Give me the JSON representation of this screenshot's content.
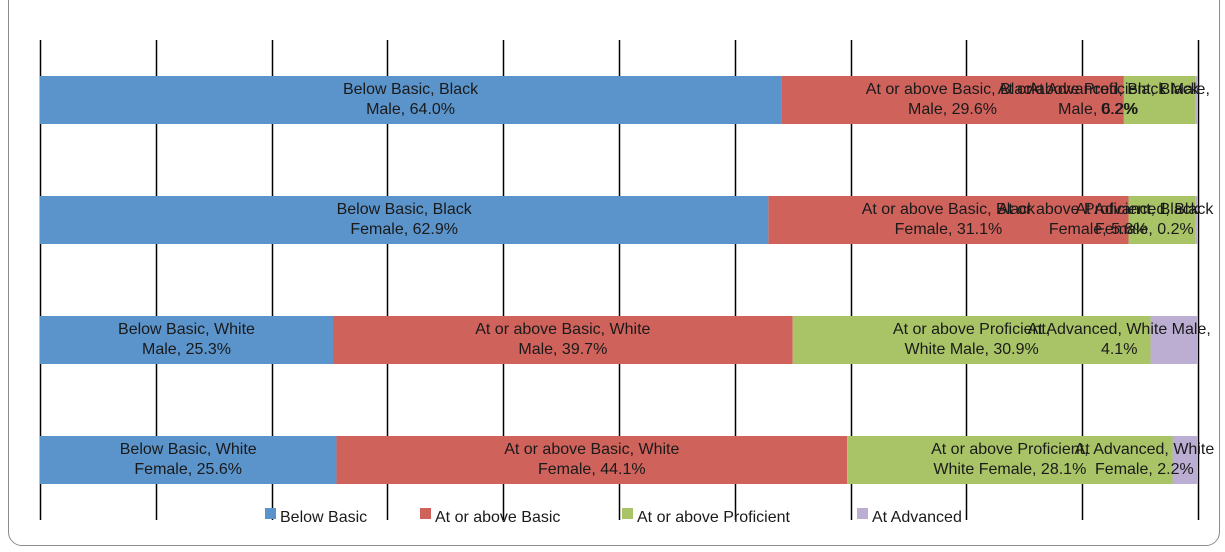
{
  "chart_data": {
    "type": "bar",
    "orientation": "horizontal",
    "stacked": true,
    "categories": [
      "Black Male",
      "Black Female",
      "White Male",
      "White Female"
    ],
    "series": [
      {
        "name": "Below Basic",
        "color": "#5b93cb",
        "values": [
          64.0,
          62.9,
          25.3,
          25.6
        ],
        "labels": [
          [
            "Below Basic, Black",
            "Male, 64.0%"
          ],
          [
            "Below Basic, Black",
            "Female, 62.9%"
          ],
          [
            "Below Basic, White",
            "Male, 25.3%"
          ],
          [
            "Below Basic, White",
            "Female, 25.6%"
          ]
        ]
      },
      {
        "name": "At or above Basic",
        "color": "#d0625c",
        "values": [
          29.6,
          31.1,
          39.7,
          44.1
        ],
        "labels": [
          [
            "At or above Basic, Black",
            "Male, 29.6%"
          ],
          [
            "At or above Basic, Black",
            "Female, 31.1%"
          ],
          [
            "At or above Basic, White",
            "Male, 39.7%"
          ],
          [
            "At or above Basic, White",
            "Female, 44.1%"
          ]
        ]
      },
      {
        "name": "At or above Proficient",
        "color": "#a9c466",
        "values": [
          6.2,
          5.8,
          30.9,
          28.1
        ],
        "labels": [
          [
            "At or above Proficient, Black",
            "Male, 6.2%"
          ],
          [
            "At or above Proficient, Black",
            "Female, 5.8%"
          ],
          [
            "At or above Proficient,",
            "White Male, 30.9%"
          ],
          [
            "At or above Proficient,",
            "White Female, 28.1%"
          ]
        ]
      },
      {
        "name": "At Advanced",
        "color": "#bcaed2",
        "values": [
          0.2,
          0.2,
          4.1,
          2.2
        ],
        "labels": [
          [
            "At Advanced, Black Male,",
            "0.2%"
          ],
          [
            "At Advanced, Black",
            "Female, 0.2%"
          ],
          [
            "At Advanced, White Male,",
            "4.1%"
          ],
          [
            "At Advanced, White",
            "Female, 2.2%"
          ]
        ]
      }
    ],
    "xlim": [
      0,
      100
    ],
    "gridlines": true,
    "legend": "bottom"
  }
}
